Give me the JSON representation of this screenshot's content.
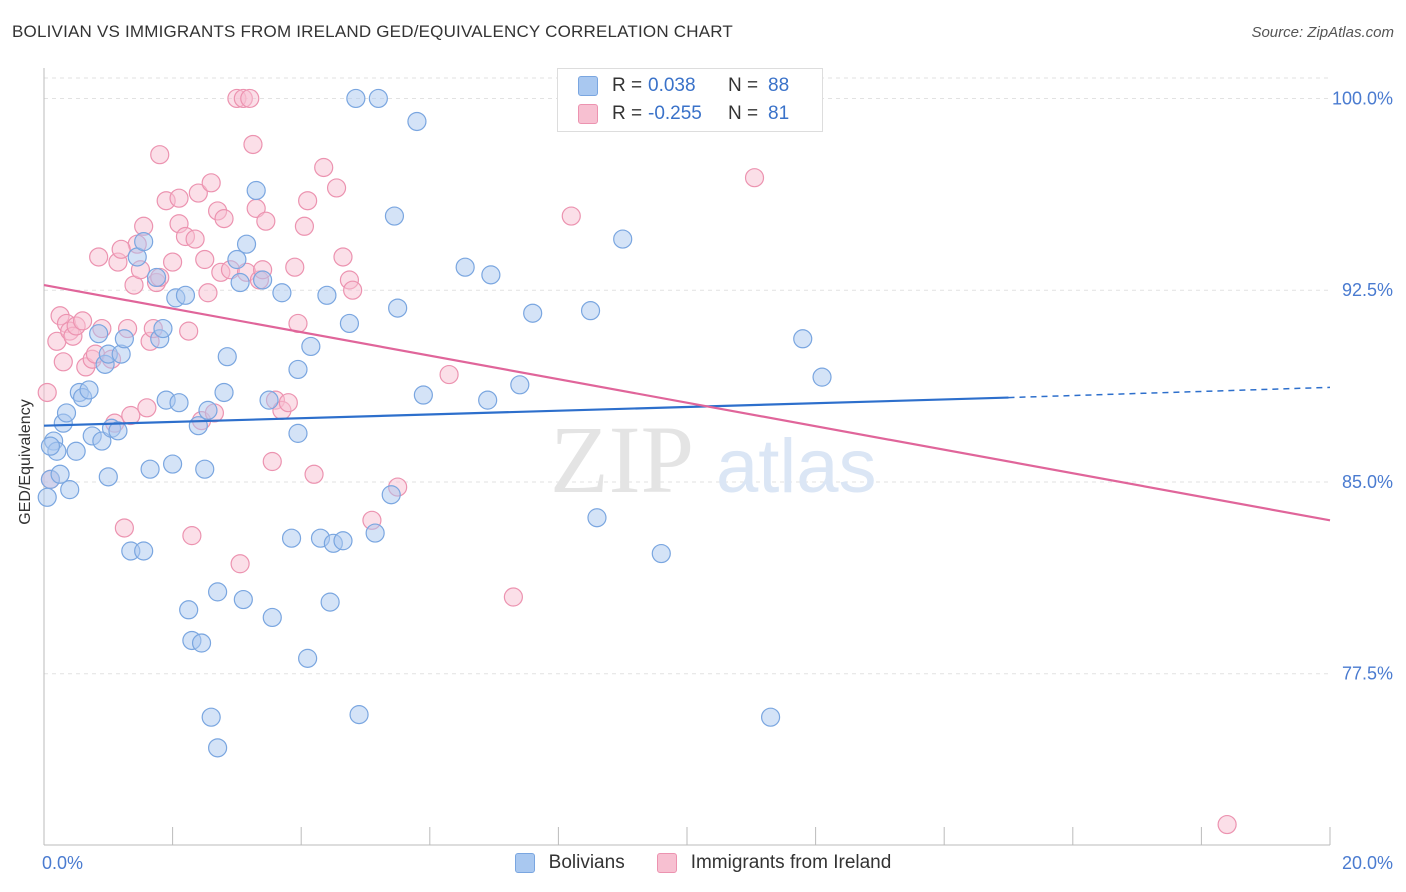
{
  "title": "BOLIVIAN VS IMMIGRANTS FROM IRELAND GED/EQUIVALENCY CORRELATION CHART",
  "source": "Source: ZipAtlas.com",
  "watermark": {
    "zip": "ZIP",
    "atlas": "atlas"
  },
  "legend": {
    "rows": [
      {
        "r_label": "R =",
        "r_value": "0.038",
        "n_label": "N =",
        "n_value": "88",
        "color": "#a9c8f0",
        "border": "#7aa6e0"
      },
      {
        "r_label": "R =",
        "r_value": "-0.255",
        "n_label": "N =",
        "n_value": "81",
        "color": "#f7c0d1",
        "border": "#ec93b0"
      }
    ]
  },
  "chart_data": {
    "type": "scatter",
    "title": "BOLIVIAN VS IMMIGRANTS FROM IRELAND GED/EQUIVALENCY CORRELATION CHART",
    "xlabel": "",
    "ylabel": "GED/Equivalency",
    "xlim": [
      0,
      20
    ],
    "ylim": [
      70.8,
      100.8
    ],
    "x_tick_labels": [
      "0.0%",
      "20.0%"
    ],
    "y_ticks": [
      77.5,
      85.0,
      92.5,
      100.0
    ],
    "y_tick_labels": [
      "77.5%",
      "85.0%",
      "92.5%",
      "100.0%"
    ],
    "grid": true,
    "legend_position": "top-center",
    "series": [
      {
        "name": "Bolivians",
        "color": "#7aa6e0",
        "fill": "#a9c8f0",
        "trend": {
          "x0": 0,
          "y0": 87.2,
          "x1": 15,
          "y1": 88.3,
          "dash_to_x": 20,
          "dash_to_y": 88.7,
          "color": "#2d6fcc"
        },
        "points": [
          [
            0.1,
            85.1
          ],
          [
            0.15,
            86.6
          ],
          [
            0.2,
            86.2
          ],
          [
            0.25,
            85.3
          ],
          [
            0.3,
            87.3
          ],
          [
            0.35,
            87.7
          ],
          [
            0.4,
            84.7
          ],
          [
            0.5,
            86.2
          ],
          [
            0.55,
            88.5
          ],
          [
            0.6,
            88.3
          ],
          [
            0.7,
            88.6
          ],
          [
            0.75,
            86.8
          ],
          [
            0.85,
            90.8
          ],
          [
            0.9,
            86.6
          ],
          [
            0.95,
            89.6
          ],
          [
            1.0,
            90.0
          ],
          [
            1.0,
            85.2
          ],
          [
            1.05,
            87.1
          ],
          [
            1.15,
            87.0
          ],
          [
            1.2,
            90.0
          ],
          [
            1.25,
            90.6
          ],
          [
            1.35,
            82.3
          ],
          [
            1.45,
            93.8
          ],
          [
            1.55,
            82.3
          ],
          [
            1.55,
            94.4
          ],
          [
            1.65,
            85.5
          ],
          [
            1.75,
            93.0
          ],
          [
            1.8,
            90.6
          ],
          [
            1.85,
            91.0
          ],
          [
            1.9,
            88.2
          ],
          [
            2.0,
            85.7
          ],
          [
            2.05,
            92.2
          ],
          [
            2.1,
            88.1
          ],
          [
            2.2,
            92.3
          ],
          [
            2.25,
            80.0
          ],
          [
            2.3,
            78.8
          ],
          [
            2.4,
            87.2
          ],
          [
            2.45,
            78.7
          ],
          [
            2.5,
            85.5
          ],
          [
            2.55,
            87.8
          ],
          [
            2.6,
            75.8
          ],
          [
            2.7,
            80.7
          ],
          [
            2.7,
            74.6
          ],
          [
            2.8,
            88.5
          ],
          [
            2.85,
            89.9
          ],
          [
            3.0,
            93.7
          ],
          [
            3.05,
            92.8
          ],
          [
            3.1,
            80.4
          ],
          [
            3.15,
            94.3
          ],
          [
            3.3,
            96.4
          ],
          [
            3.4,
            92.9
          ],
          [
            3.5,
            88.2
          ],
          [
            3.55,
            79.7
          ],
          [
            3.7,
            92.4
          ],
          [
            3.85,
            82.8
          ],
          [
            3.95,
            89.4
          ],
          [
            3.95,
            86.9
          ],
          [
            4.1,
            78.1
          ],
          [
            4.15,
            90.3
          ],
          [
            4.3,
            82.8
          ],
          [
            4.4,
            92.3
          ],
          [
            4.45,
            80.3
          ],
          [
            4.5,
            82.6
          ],
          [
            4.65,
            82.7
          ],
          [
            4.75,
            91.2
          ],
          [
            4.85,
            100.0
          ],
          [
            4.9,
            75.9
          ],
          [
            5.15,
            83.0
          ],
          [
            5.4,
            84.5
          ],
          [
            5.45,
            95.4
          ],
          [
            5.5,
            91.8
          ],
          [
            5.8,
            99.1
          ],
          [
            5.9,
            88.4
          ],
          [
            6.55,
            93.4
          ],
          [
            6.9,
            88.2
          ],
          [
            6.95,
            93.1
          ],
          [
            7.4,
            88.8
          ],
          [
            7.6,
            91.6
          ],
          [
            8.5,
            91.7
          ],
          [
            8.6,
            83.6
          ],
          [
            9.0,
            94.5
          ],
          [
            9.6,
            82.2
          ],
          [
            11.3,
            75.8
          ],
          [
            11.8,
            90.6
          ],
          [
            12.1,
            89.1
          ],
          [
            0.05,
            84.4
          ],
          [
            0.1,
            86.4
          ],
          [
            5.2,
            100.0
          ]
        ]
      },
      {
        "name": "Immigrants from Ireland",
        "color": "#ec93b0",
        "fill": "#f7c0d1",
        "trend": {
          "x0": 0,
          "y0": 92.7,
          "x1": 20,
          "y1": 83.5,
          "color": "#e0659a"
        },
        "points": [
          [
            0.05,
            88.5
          ],
          [
            0.1,
            85.1
          ],
          [
            0.2,
            90.5
          ],
          [
            0.25,
            91.5
          ],
          [
            0.35,
            91.2
          ],
          [
            0.4,
            90.9
          ],
          [
            0.45,
            90.7
          ],
          [
            0.5,
            91.1
          ],
          [
            0.6,
            91.3
          ],
          [
            0.65,
            89.5
          ],
          [
            0.75,
            89.8
          ],
          [
            0.8,
            90.0
          ],
          [
            0.85,
            93.8
          ],
          [
            0.9,
            91.0
          ],
          [
            1.05,
            89.8
          ],
          [
            1.1,
            87.3
          ],
          [
            1.15,
            93.6
          ],
          [
            1.25,
            83.2
          ],
          [
            1.3,
            91.0
          ],
          [
            1.35,
            87.6
          ],
          [
            1.4,
            92.7
          ],
          [
            1.45,
            94.3
          ],
          [
            1.5,
            93.3
          ],
          [
            1.55,
            95.0
          ],
          [
            1.6,
            87.9
          ],
          [
            1.65,
            90.5
          ],
          [
            1.7,
            91.0
          ],
          [
            1.75,
            92.8
          ],
          [
            1.8,
            93.0
          ],
          [
            1.8,
            97.8
          ],
          [
            1.9,
            96.0
          ],
          [
            2.0,
            93.6
          ],
          [
            2.1,
            95.1
          ],
          [
            2.1,
            96.1
          ],
          [
            2.2,
            94.6
          ],
          [
            2.25,
            90.9
          ],
          [
            2.3,
            82.9
          ],
          [
            2.4,
            96.3
          ],
          [
            2.45,
            87.4
          ],
          [
            2.5,
            93.7
          ],
          [
            2.55,
            92.4
          ],
          [
            2.6,
            96.7
          ],
          [
            2.65,
            87.7
          ],
          [
            2.7,
            95.6
          ],
          [
            2.75,
            93.2
          ],
          [
            2.8,
            95.3
          ],
          [
            2.9,
            93.3
          ],
          [
            3.0,
            100.0
          ],
          [
            3.05,
            81.8
          ],
          [
            3.1,
            100.0
          ],
          [
            3.15,
            93.2
          ],
          [
            3.2,
            100.0
          ],
          [
            3.25,
            98.2
          ],
          [
            3.3,
            95.7
          ],
          [
            3.35,
            92.9
          ],
          [
            3.4,
            93.3
          ],
          [
            3.45,
            95.2
          ],
          [
            3.55,
            85.8
          ],
          [
            3.6,
            88.2
          ],
          [
            3.7,
            87.8
          ],
          [
            3.8,
            88.1
          ],
          [
            3.9,
            93.4
          ],
          [
            3.95,
            91.2
          ],
          [
            4.05,
            95.0
          ],
          [
            4.1,
            96.0
          ],
          [
            4.2,
            85.3
          ],
          [
            4.35,
            97.3
          ],
          [
            4.55,
            96.5
          ],
          [
            4.65,
            93.8
          ],
          [
            4.75,
            92.9
          ],
          [
            4.8,
            92.5
          ],
          [
            5.1,
            83.5
          ],
          [
            5.5,
            84.8
          ],
          [
            6.3,
            89.2
          ],
          [
            7.3,
            80.5
          ],
          [
            8.2,
            95.4
          ],
          [
            11.05,
            96.9
          ],
          [
            18.4,
            71.6
          ],
          [
            0.3,
            89.7
          ],
          [
            1.2,
            94.1
          ],
          [
            2.35,
            94.5
          ]
        ]
      }
    ]
  }
}
